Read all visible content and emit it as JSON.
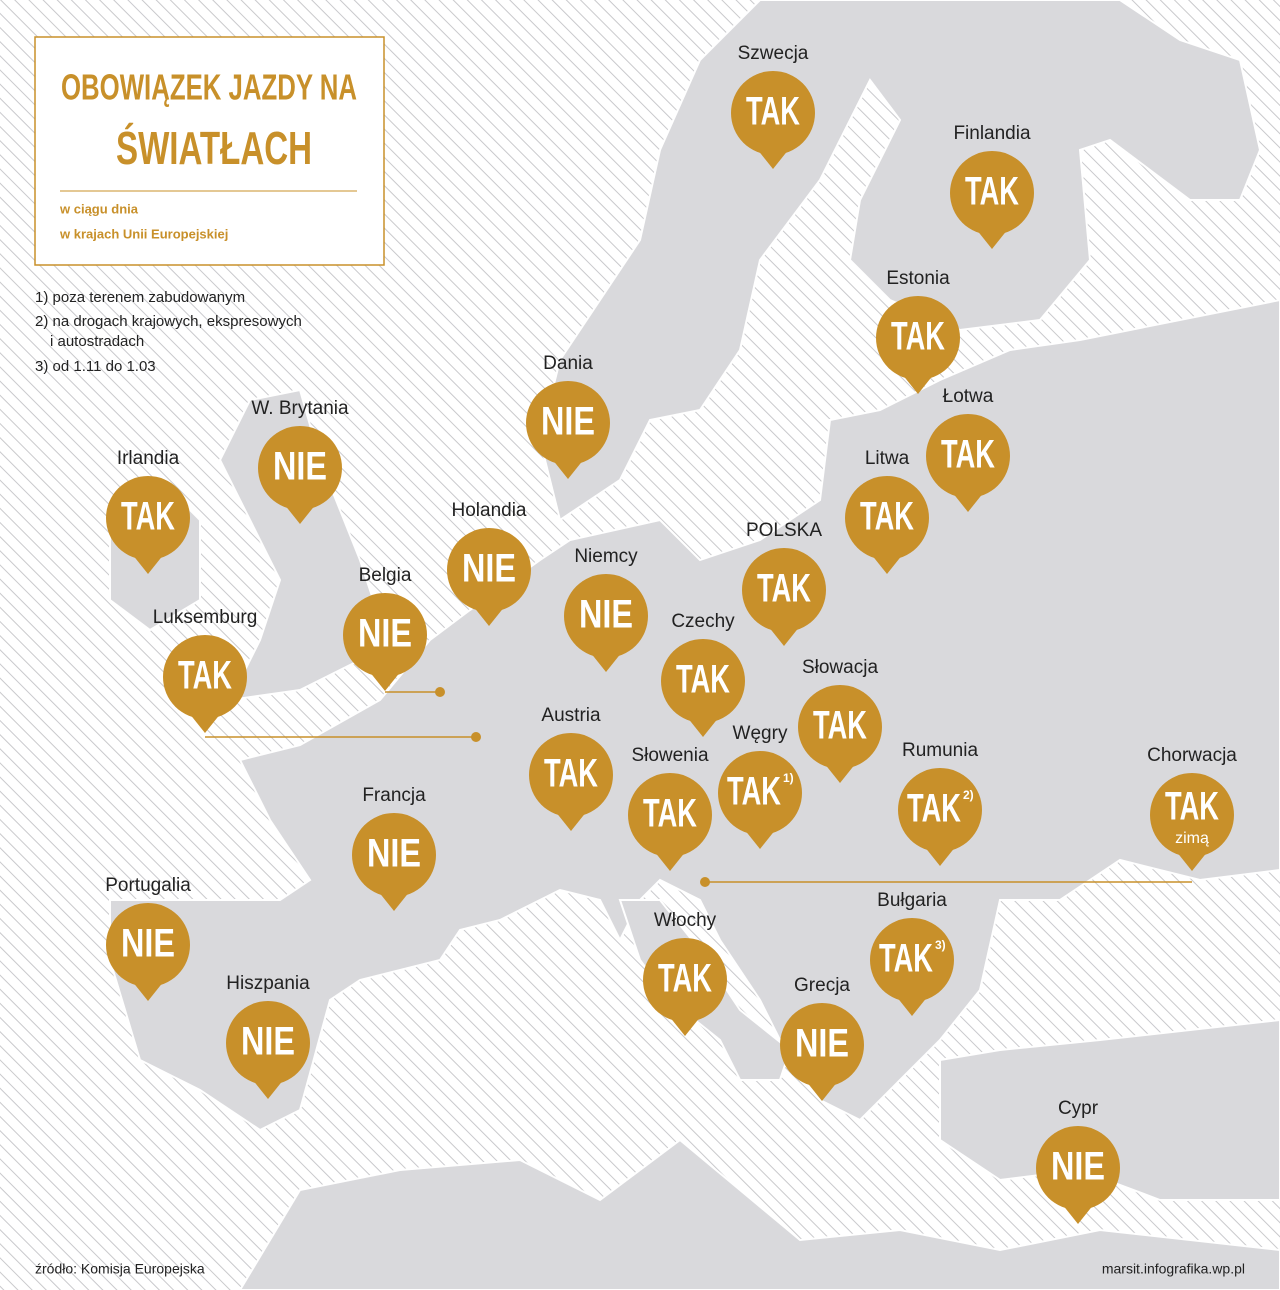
{
  "header": {
    "title_lines": [
      "OBOWIĄZEK JAZDY NA",
      "ŚWIATŁACH"
    ],
    "subtitle_lines": [
      "w ciągu dnia",
      "w krajach Unii Europejskiej"
    ]
  },
  "footnotes": [
    "1) poza terenem zabudowanym",
    "2) na drogach krajowych, ekspresowych",
    "i autostradach",
    "3) od 1.11 do 1.03"
  ],
  "markers": [
    {
      "country": "Szwecja",
      "answer": "TAK"
    },
    {
      "country": "Finlandia",
      "answer": "TAK"
    },
    {
      "country": "Estonia",
      "answer": "TAK"
    },
    {
      "country": "Łotwa",
      "answer": "TAK"
    },
    {
      "country": "Litwa",
      "answer": "TAK"
    },
    {
      "country": "Dania",
      "answer": "NIE"
    },
    {
      "country": "W. Brytania",
      "answer": "NIE"
    },
    {
      "country": "Irlandia",
      "answer": "TAK"
    },
    {
      "country": "Holandia",
      "answer": "NIE"
    },
    {
      "country": "Niemcy",
      "answer": "NIE"
    },
    {
      "country": "POLSKA",
      "answer": "TAK"
    },
    {
      "country": "Belgia",
      "answer": "NIE"
    },
    {
      "country": "Luksemburg",
      "answer": "TAK"
    },
    {
      "country": "Czechy",
      "answer": "TAK"
    },
    {
      "country": "Słowacja",
      "answer": "TAK"
    },
    {
      "country": "Austria",
      "answer": "TAK"
    },
    {
      "country": "Węgry",
      "answer": "TAK",
      "note": "1)"
    },
    {
      "country": "Słowenia",
      "answer": "TAK"
    },
    {
      "country": "Rumunia",
      "answer": "TAK",
      "note": "2)"
    },
    {
      "country": "Chorwacja",
      "answer": "TAK",
      "extra": "zimą"
    },
    {
      "country": "Francja",
      "answer": "NIE"
    },
    {
      "country": "Portugalia",
      "answer": "NIE"
    },
    {
      "country": "Bułgaria",
      "answer": "TAK",
      "note": "3)"
    },
    {
      "country": "Włochy",
      "answer": "TAK"
    },
    {
      "country": "Hiszpania",
      "answer": "NIE"
    },
    {
      "country": "Grecja",
      "answer": "NIE"
    },
    {
      "country": "Cypr",
      "answer": "NIE"
    }
  ],
  "source": "źródło: Komisja Europejska",
  "credit": "marsit.infografika.wp.pl"
}
